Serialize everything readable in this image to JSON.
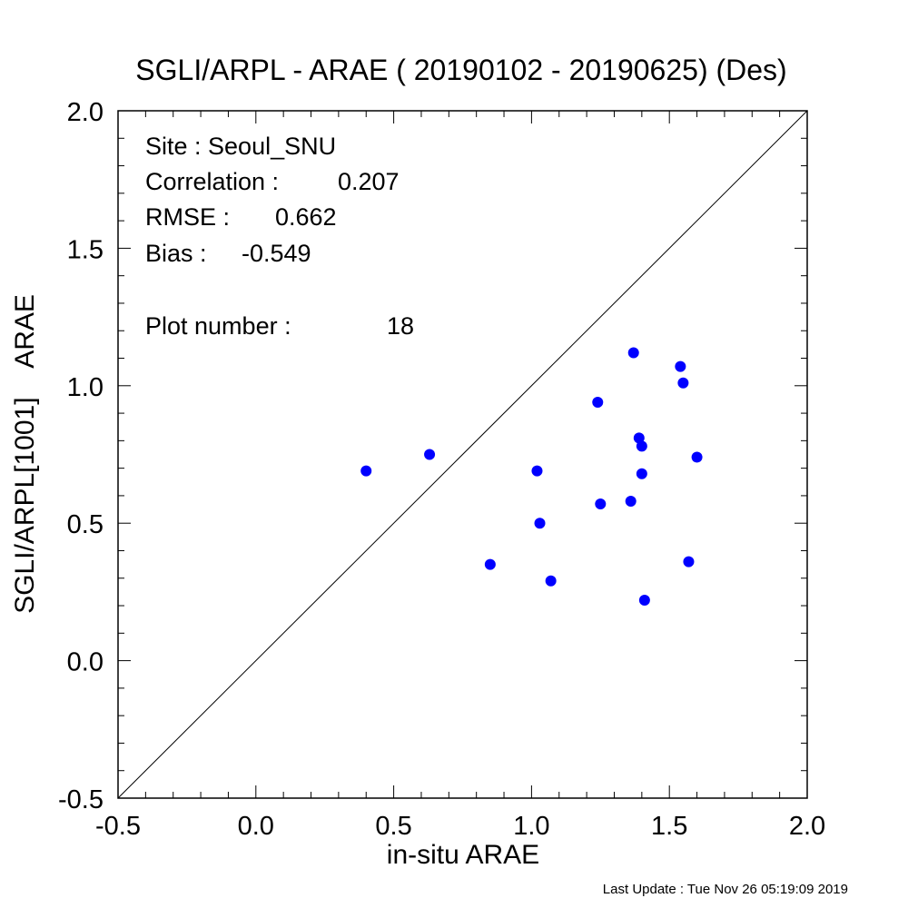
{
  "chart_data": {
    "type": "scatter",
    "title": "SGLI/ARPL - ARAE ( 20190102 - 20190625) (Des)",
    "xlabel": "in-situ ARAE",
    "ylabel": "SGLI/ARPL[1001]    ARAE",
    "xlim": [
      -0.5,
      2.0
    ],
    "ylim": [
      -0.5,
      2.0
    ],
    "xticks": [
      "-0.5",
      "0.0",
      "0.5",
      "1.0",
      "1.5",
      "2.0"
    ],
    "yticks": [
      "-0.5",
      "0.0",
      "0.5",
      "1.0",
      "1.5",
      "2.0"
    ],
    "reference_line": "1:1",
    "point_color": "#0000ff",
    "points": [
      {
        "x": 0.4,
        "y": 0.69
      },
      {
        "x": 0.63,
        "y": 0.75
      },
      {
        "x": 0.85,
        "y": 0.35
      },
      {
        "x": 1.02,
        "y": 0.69
      },
      {
        "x": 1.03,
        "y": 0.5
      },
      {
        "x": 1.07,
        "y": 0.29
      },
      {
        "x": 1.24,
        "y": 0.94
      },
      {
        "x": 1.25,
        "y": 0.57
      },
      {
        "x": 1.36,
        "y": 0.58
      },
      {
        "x": 1.37,
        "y": 1.12
      },
      {
        "x": 1.39,
        "y": 0.81
      },
      {
        "x": 1.4,
        "y": 0.68
      },
      {
        "x": 1.4,
        "y": 0.78
      },
      {
        "x": 1.41,
        "y": 0.22
      },
      {
        "x": 1.54,
        "y": 1.07
      },
      {
        "x": 1.55,
        "y": 1.01
      },
      {
        "x": 1.57,
        "y": 0.36
      },
      {
        "x": 1.6,
        "y": 0.74
      }
    ]
  },
  "stats": {
    "site": "Site : Seoul_SNU",
    "correlation_label": "Correlation :",
    "correlation_value": "0.207",
    "rmse_label": "RMSE :",
    "rmse_value": "0.662",
    "bias_label": "Bias :",
    "bias_value": "-0.549",
    "plot_number_label": "Plot number :",
    "plot_number_value": "18"
  },
  "footer": {
    "last_update": "Last Update : Tue Nov 26 05:19:09 2019"
  }
}
